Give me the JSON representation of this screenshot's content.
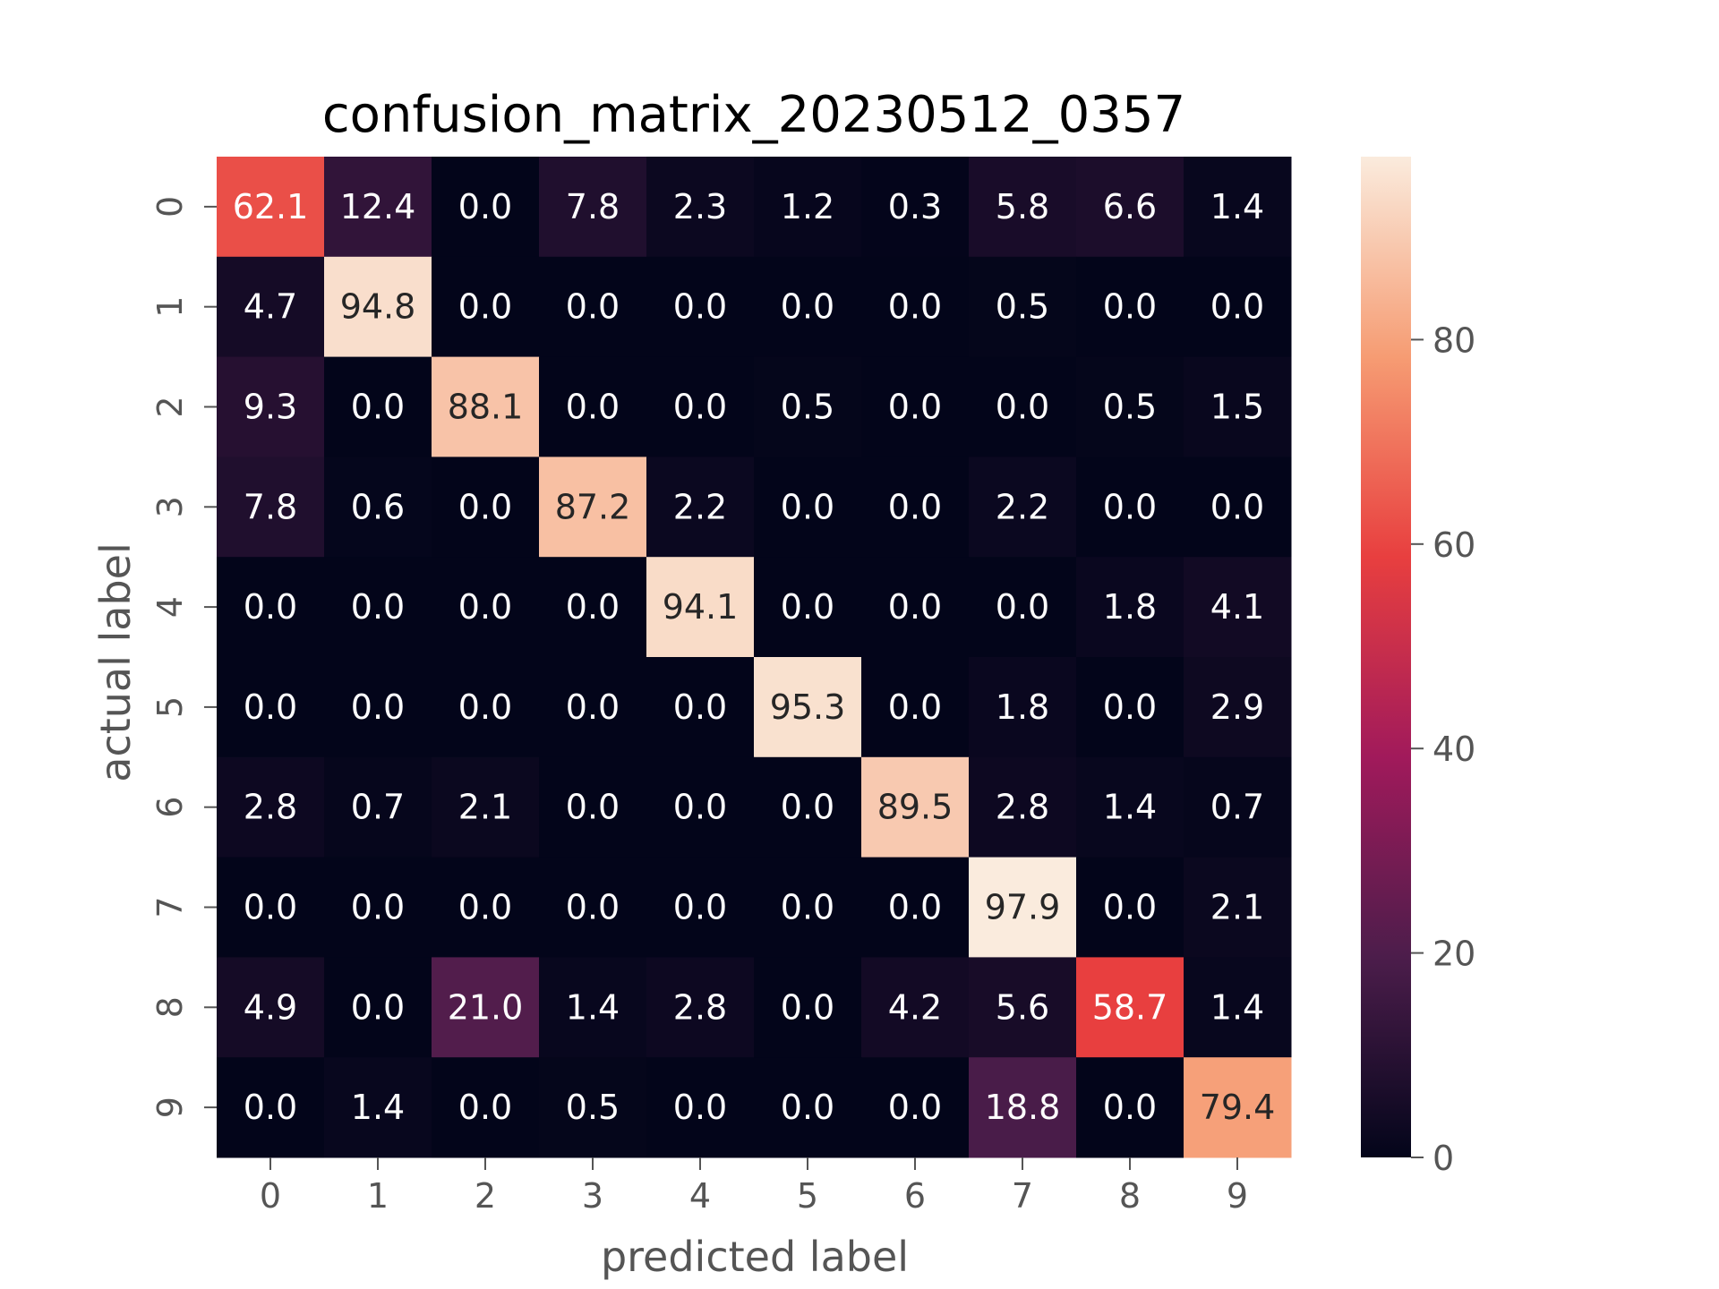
{
  "chart_data": {
    "type": "heatmap",
    "title": "confusion_matrix_20230512_0357",
    "xlabel": "predicted label",
    "ylabel": "actual label",
    "x_categories": [
      "0",
      "1",
      "2",
      "3",
      "4",
      "5",
      "6",
      "7",
      "8",
      "9"
    ],
    "y_categories": [
      "0",
      "1",
      "2",
      "3",
      "4",
      "5",
      "6",
      "7",
      "8",
      "9"
    ],
    "values": [
      [
        62.1,
        12.4,
        0.0,
        7.8,
        2.3,
        1.2,
        0.3,
        5.8,
        6.6,
        1.4
      ],
      [
        4.7,
        94.8,
        0.0,
        0.0,
        0.0,
        0.0,
        0.0,
        0.5,
        0.0,
        0.0
      ],
      [
        9.3,
        0.0,
        88.1,
        0.0,
        0.0,
        0.5,
        0.0,
        0.0,
        0.5,
        1.5
      ],
      [
        7.8,
        0.6,
        0.0,
        87.2,
        2.2,
        0.0,
        0.0,
        2.2,
        0.0,
        0.0
      ],
      [
        0.0,
        0.0,
        0.0,
        0.0,
        94.1,
        0.0,
        0.0,
        0.0,
        1.8,
        4.1
      ],
      [
        0.0,
        0.0,
        0.0,
        0.0,
        0.0,
        95.3,
        0.0,
        1.8,
        0.0,
        2.9
      ],
      [
        2.8,
        0.7,
        2.1,
        0.0,
        0.0,
        0.0,
        89.5,
        2.8,
        1.4,
        0.7
      ],
      [
        0.0,
        0.0,
        0.0,
        0.0,
        0.0,
        0.0,
        0.0,
        97.9,
        0.0,
        2.1
      ],
      [
        4.9,
        0.0,
        21.0,
        1.4,
        2.8,
        0.0,
        4.2,
        5.6,
        58.7,
        1.4
      ],
      [
        0.0,
        1.4,
        0.0,
        0.5,
        0.0,
        0.0,
        0.0,
        18.8,
        0.0,
        79.4
      ]
    ],
    "colorbar": {
      "min": 0,
      "max": 97.9,
      "ticks": [
        0,
        20,
        40,
        60,
        80
      ],
      "colormap": "rocket",
      "colormap_stops": [
        "#03051A",
        "#4C1D4B",
        "#A11A5B",
        "#E83F3F",
        "#F69C73",
        "#FAEBDD"
      ]
    },
    "grid": false
  }
}
